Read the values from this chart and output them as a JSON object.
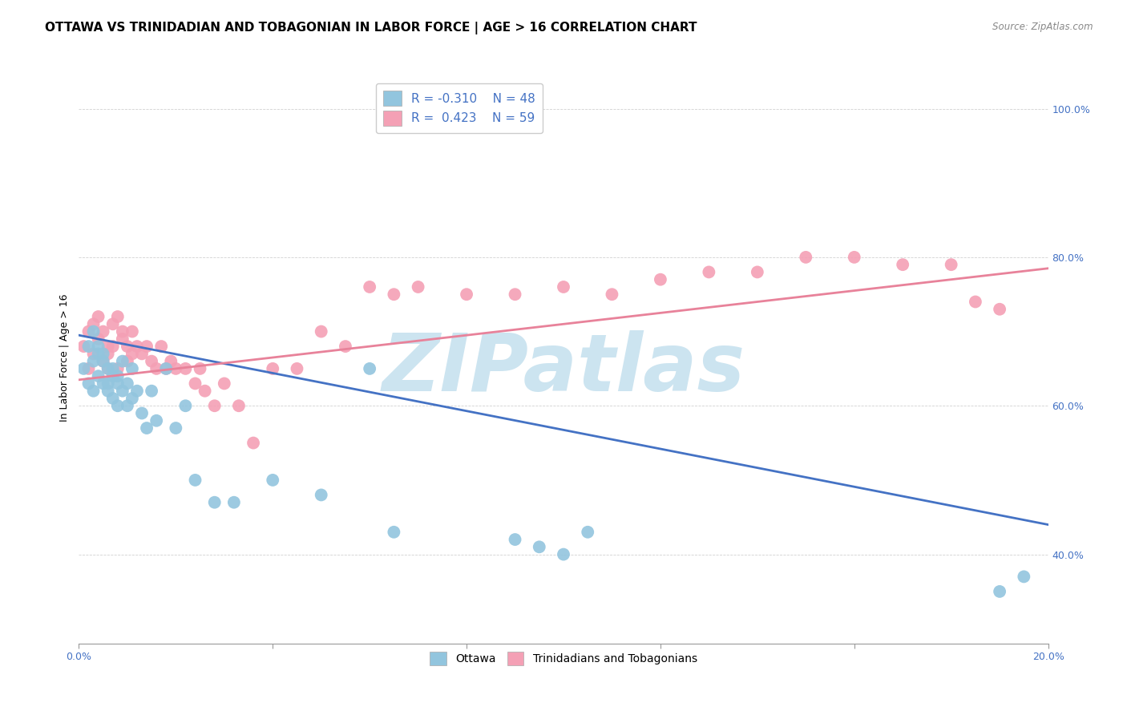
{
  "title": "OTTAWA VS TRINIDADIAN AND TOBAGONIAN IN LABOR FORCE | AGE > 16 CORRELATION CHART",
  "source": "Source: ZipAtlas.com",
  "ylabel": "In Labor Force | Age > 16",
  "xlim": [
    0.0,
    0.2
  ],
  "ylim": [
    0.28,
    1.05
  ],
  "ytick_labels": [
    "40.0%",
    "60.0%",
    "80.0%",
    "100.0%"
  ],
  "ytick_values": [
    0.4,
    0.6,
    0.8,
    1.0
  ],
  "xtick_values": [
    0.0,
    0.04,
    0.08,
    0.12,
    0.16,
    0.2
  ],
  "xtick_labels": [
    "0.0%",
    "",
    "",
    "",
    "",
    "20.0%"
  ],
  "ottawa_color": "#92c5de",
  "trinidadian_color": "#f4a0b5",
  "line_ottawa_color": "#4472C4",
  "line_trinidadian_color": "#E8829A",
  "watermark": "ZIPatlas",
  "watermark_color": "#cce4f0",
  "title_fontsize": 11,
  "axis_label_fontsize": 9,
  "tick_fontsize": 9,
  "legend_fontsize": 11,
  "ottawa_scatter_x": [
    0.001,
    0.002,
    0.002,
    0.003,
    0.003,
    0.003,
    0.004,
    0.004,
    0.004,
    0.005,
    0.005,
    0.005,
    0.006,
    0.006,
    0.006,
    0.007,
    0.007,
    0.007,
    0.008,
    0.008,
    0.008,
    0.009,
    0.009,
    0.01,
    0.01,
    0.011,
    0.011,
    0.012,
    0.013,
    0.014,
    0.015,
    0.016,
    0.018,
    0.02,
    0.022,
    0.024,
    0.028,
    0.032,
    0.04,
    0.05,
    0.06,
    0.065,
    0.09,
    0.095,
    0.1,
    0.105,
    0.19,
    0.195
  ],
  "ottawa_scatter_y": [
    0.65,
    0.68,
    0.63,
    0.66,
    0.7,
    0.62,
    0.67,
    0.64,
    0.68,
    0.66,
    0.63,
    0.67,
    0.65,
    0.62,
    0.63,
    0.64,
    0.61,
    0.65,
    0.63,
    0.6,
    0.64,
    0.62,
    0.66,
    0.63,
    0.6,
    0.65,
    0.61,
    0.62,
    0.59,
    0.57,
    0.62,
    0.58,
    0.65,
    0.57,
    0.6,
    0.5,
    0.47,
    0.47,
    0.5,
    0.48,
    0.65,
    0.43,
    0.42,
    0.41,
    0.4,
    0.43,
    0.35,
    0.37
  ],
  "trinidadian_scatter_x": [
    0.001,
    0.002,
    0.002,
    0.003,
    0.003,
    0.004,
    0.004,
    0.005,
    0.005,
    0.006,
    0.006,
    0.006,
    0.007,
    0.007,
    0.008,
    0.008,
    0.009,
    0.009,
    0.01,
    0.01,
    0.011,
    0.011,
    0.012,
    0.013,
    0.014,
    0.015,
    0.016,
    0.017,
    0.018,
    0.019,
    0.02,
    0.022,
    0.024,
    0.025,
    0.026,
    0.028,
    0.03,
    0.033,
    0.036,
    0.04,
    0.045,
    0.05,
    0.055,
    0.06,
    0.065,
    0.07,
    0.08,
    0.09,
    0.1,
    0.11,
    0.12,
    0.13,
    0.14,
    0.15,
    0.16,
    0.17,
    0.18,
    0.185,
    0.19
  ],
  "trinidadian_scatter_y": [
    0.68,
    0.7,
    0.65,
    0.67,
    0.71,
    0.69,
    0.72,
    0.66,
    0.7,
    0.68,
    0.65,
    0.67,
    0.71,
    0.68,
    0.72,
    0.65,
    0.69,
    0.7,
    0.68,
    0.66,
    0.7,
    0.67,
    0.68,
    0.67,
    0.68,
    0.66,
    0.65,
    0.68,
    0.65,
    0.66,
    0.65,
    0.65,
    0.63,
    0.65,
    0.62,
    0.6,
    0.63,
    0.6,
    0.55,
    0.65,
    0.65,
    0.7,
    0.68,
    0.76,
    0.75,
    0.76,
    0.75,
    0.75,
    0.76,
    0.75,
    0.77,
    0.78,
    0.78,
    0.8,
    0.8,
    0.79,
    0.79,
    0.74,
    0.73
  ],
  "ott_line_x0": 0.0,
  "ott_line_x1": 0.2,
  "ott_line_y0": 0.695,
  "ott_line_y1": 0.44,
  "tri_line_x0": 0.0,
  "tri_line_x1": 0.2,
  "tri_line_y0": 0.635,
  "tri_line_y1": 0.785
}
